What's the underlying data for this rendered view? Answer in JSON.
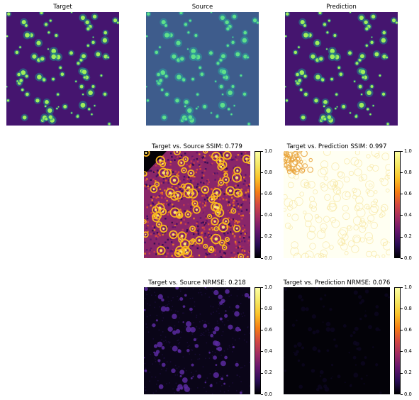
{
  "chart_data": [
    {
      "type": "heatmap",
      "title": "Target",
      "colormap": "viridis-dark"
    },
    {
      "type": "heatmap",
      "title": "Source",
      "colormap": "viridis-blue"
    },
    {
      "type": "heatmap",
      "title": "Prediction",
      "colormap": "viridis-dark"
    },
    {
      "type": "heatmap",
      "title": "Target vs. Source SSIM: 0.779",
      "metric": "SSIM",
      "value": 0.779,
      "colorbar": {
        "range": [
          0,
          1
        ],
        "ticks": [
          "0.0",
          "0.2",
          "0.4",
          "0.6",
          "0.8",
          "1.0"
        ],
        "colormap": "inferno"
      }
    },
    {
      "type": "heatmap",
      "title": "Target vs. Prediction SSIM: 0.997",
      "metric": "SSIM",
      "value": 0.997,
      "colorbar": {
        "range": [
          0,
          1
        ],
        "ticks": [
          "0.0",
          "0.2",
          "0.4",
          "0.6",
          "0.8",
          "1.0"
        ],
        "colormap": "inferno"
      }
    },
    {
      "type": "heatmap",
      "title": "Target vs. Source NRMSE: 0.218",
      "metric": "NRMSE",
      "value": 0.218,
      "colorbar": {
        "range": [
          0,
          1
        ],
        "ticks": [
          "0.0",
          "0.2",
          "0.4",
          "0.6",
          "0.8",
          "1.0"
        ],
        "colormap": "inferno"
      }
    },
    {
      "type": "heatmap",
      "title": "Target vs. Prediction NRMSE: 0.076",
      "metric": "NRMSE",
      "value": 0.076,
      "colorbar": {
        "range": [
          0,
          1
        ],
        "ticks": [
          "0.0",
          "0.2",
          "0.4",
          "0.6",
          "0.8",
          "1.0"
        ],
        "colormap": "inferno"
      }
    }
  ]
}
